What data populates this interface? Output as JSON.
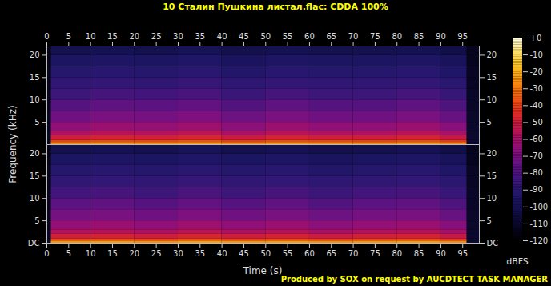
{
  "chart_data": {
    "type": "heatmap",
    "title": "10 Сталин Пушкина листал.flac: CDDA 100%",
    "x_label": "Time (s)",
    "y_label": "Frequency (kHz)",
    "caption": "Produced by SOX on request by AUCDTECT TASK MANAGER",
    "xlim": [
      0,
      98.8
    ],
    "xticks": [
      0,
      5,
      10,
      15,
      20,
      25,
      30,
      35,
      40,
      45,
      50,
      55,
      60,
      65,
      70,
      75,
      80,
      85,
      90,
      95
    ],
    "ylim": [
      0,
      22.05
    ],
    "time_bins": [
      0,
      1,
      10,
      20,
      30,
      40,
      50,
      60,
      70,
      80,
      90,
      96,
      98.8
    ],
    "freq_bins": [
      0,
      0.5,
      1,
      2,
      3,
      5,
      7.5,
      10,
      12.5,
      15,
      17.5,
      20,
      22.05
    ],
    "colorbar": {
      "label": "dBFS",
      "range": [
        -120,
        0
      ],
      "ticks": [
        {
          "value": 0,
          "label": "+0"
        },
        -10,
        -20,
        -30,
        -40,
        -50,
        -60,
        -70,
        -80,
        -90,
        -100,
        -110,
        -120
      ]
    },
    "channels": [
      {
        "yticks": [
          5,
          10,
          15,
          20
        ],
        "values": [
          [
            -110,
            -26,
            -24,
            -25,
            -23,
            -26,
            -24,
            -25,
            -26,
            -24,
            -27,
            -108
          ],
          [
            -110,
            -40,
            -38,
            -39,
            -37,
            -41,
            -38,
            -39,
            -40,
            -38,
            -42,
            -108
          ],
          [
            -111,
            -50,
            -48,
            -49,
            -47,
            -51,
            -48,
            -50,
            -50,
            -48,
            -52,
            -109
          ],
          [
            -111,
            -58,
            -56,
            -57,
            -55,
            -59,
            -56,
            -58,
            -58,
            -56,
            -60,
            -109
          ],
          [
            -112,
            -65,
            -63,
            -64,
            -62,
            -66,
            -63,
            -65,
            -65,
            -63,
            -67,
            -110
          ],
          [
            -112,
            -72,
            -70,
            -71,
            -69,
            -73,
            -70,
            -72,
            -72,
            -70,
            -74,
            -110
          ],
          [
            -113,
            -78,
            -76,
            -77,
            -75,
            -79,
            -76,
            -78,
            -78,
            -76,
            -80,
            -111
          ],
          [
            -113,
            -84,
            -82,
            -83,
            -81,
            -85,
            -82,
            -84,
            -84,
            -82,
            -86,
            -111
          ],
          [
            -114,
            -88,
            -87,
            -88,
            -86,
            -89,
            -87,
            -88,
            -88,
            -87,
            -90,
            -112
          ],
          [
            -114,
            -92,
            -91,
            -92,
            -90,
            -93,
            -91,
            -92,
            -92,
            -91,
            -94,
            -112
          ],
          [
            -115,
            -96,
            -95,
            -96,
            -94,
            -97,
            -95,
            -96,
            -96,
            -95,
            -98,
            -113
          ],
          [
            -115,
            -101,
            -100,
            -101,
            -99,
            -102,
            -100,
            -101,
            -101,
            -100,
            -103,
            -113
          ]
        ]
      },
      {
        "yticks": [
          {
            "value": 0,
            "label": "DC"
          },
          5,
          10,
          15,
          20
        ],
        "values": [
          [
            -110,
            -25,
            -24,
            -26,
            -23,
            -25,
            -24,
            -26,
            -25,
            -24,
            -27,
            -108
          ],
          [
            -110,
            -39,
            -38,
            -40,
            -37,
            -40,
            -38,
            -40,
            -39,
            -38,
            -42,
            -108
          ],
          [
            -111,
            -49,
            -48,
            -50,
            -47,
            -50,
            -48,
            -51,
            -49,
            -48,
            -52,
            -109
          ],
          [
            -111,
            -57,
            -56,
            -58,
            -55,
            -58,
            -56,
            -59,
            -57,
            -56,
            -60,
            -109
          ],
          [
            -112,
            -64,
            -63,
            -65,
            -62,
            -65,
            -63,
            -66,
            -64,
            -63,
            -67,
            -110
          ],
          [
            -112,
            -71,
            -70,
            -72,
            -69,
            -72,
            -70,
            -73,
            -71,
            -70,
            -74,
            -110
          ],
          [
            -113,
            -77,
            -76,
            -78,
            -75,
            -78,
            -76,
            -79,
            -77,
            -76,
            -80,
            -111
          ],
          [
            -113,
            -83,
            -82,
            -84,
            -81,
            -84,
            -82,
            -85,
            -83,
            -82,
            -86,
            -111
          ],
          [
            -114,
            -88,
            -87,
            -88,
            -86,
            -88,
            -87,
            -89,
            -88,
            -87,
            -90,
            -112
          ],
          [
            -114,
            -92,
            -91,
            -92,
            -90,
            -92,
            -91,
            -93,
            -92,
            -91,
            -94,
            -112
          ],
          [
            -115,
            -96,
            -95,
            -96,
            -94,
            -96,
            -95,
            -97,
            -96,
            -95,
            -98,
            -113
          ],
          [
            -115,
            -101,
            -100,
            -101,
            -99,
            -101,
            -100,
            -102,
            -101,
            -100,
            -103,
            -113
          ]
        ]
      }
    ]
  }
}
